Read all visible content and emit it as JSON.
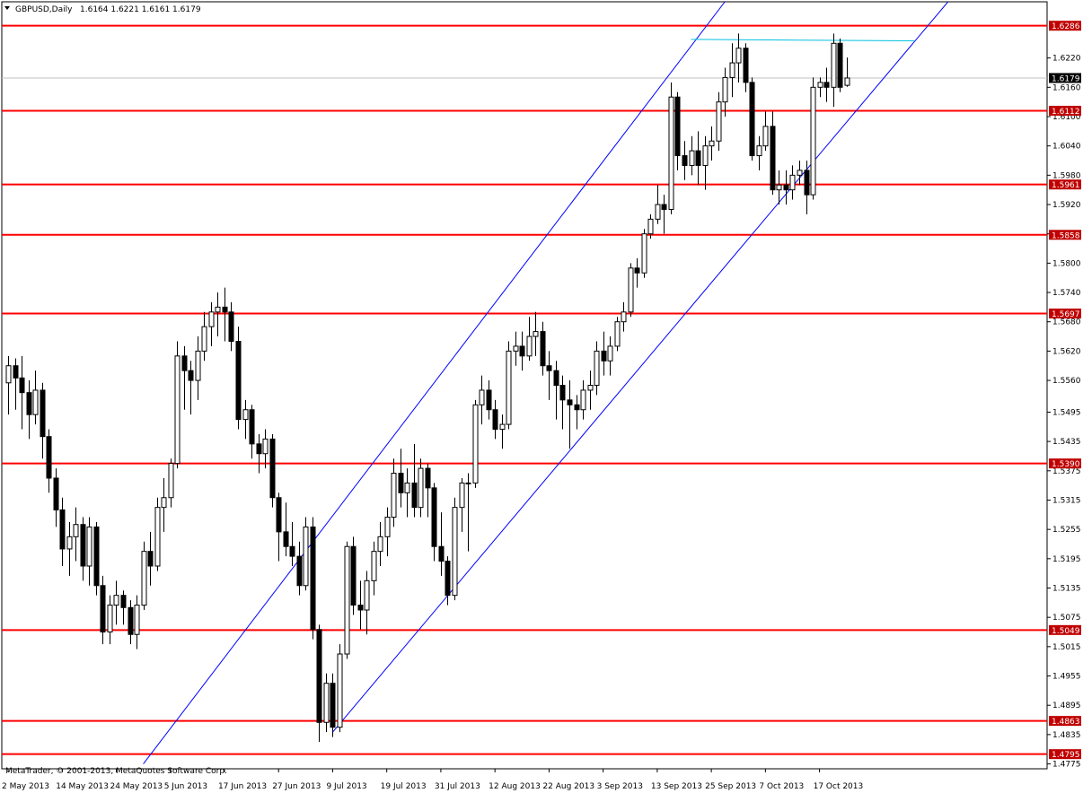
{
  "header": {
    "arrow_icon": "triangle-down-icon",
    "symbol": "GBPUSD,Daily",
    "ohlc": "1.6164 1.6221 1.6161 1.6179"
  },
  "footer": {
    "copyright": "MetaTrader, © 2001-2013, MetaQuotes Software Corp."
  },
  "colors": {
    "background": "#ffffff",
    "frame": "#000000",
    "level": "#ff0000",
    "channel": "#0000ff",
    "resistance": "#00c0e0",
    "bull_body": "#ffffff",
    "bear_body": "#000000",
    "current_tag": "#000000",
    "level_tag": "#c00000"
  },
  "chart_data": {
    "type": "candlestick",
    "symbol": "GBPUSD",
    "timeframe": "Daily",
    "last_price": "1.6179",
    "ylim": [
      1.4765,
      1.6335
    ],
    "y_ticks": [
      "1.6220",
      "1.6160",
      "1.6100",
      "1.6040",
      "1.5980",
      "1.5920",
      "1.5860",
      "1.5800",
      "1.5740",
      "1.5680",
      "1.5620",
      "1.5560",
      "1.5495",
      "1.5435",
      "1.5375",
      "1.5315",
      "1.5255",
      "1.5195",
      "1.5135",
      "1.5075",
      "1.5015",
      "1.4955",
      "1.4895",
      "1.4835",
      "1.4775"
    ],
    "horizontal_levels": [
      "1.6286",
      "1.6112",
      "1.5961",
      "1.5858",
      "1.5697",
      "1.5390",
      "1.5049",
      "1.4863",
      "1.4795"
    ],
    "x_labels": [
      {
        "label": "2 May 2013",
        "bar": 0
      },
      {
        "label": "14 May 2013",
        "bar": 8
      },
      {
        "label": "24 May 2013",
        "bar": 16
      },
      {
        "label": "5 Jun 2013",
        "bar": 24
      },
      {
        "label": "17 Jun 2013",
        "bar": 32
      },
      {
        "label": "27 Jun 2013",
        "bar": 40
      },
      {
        "label": "9 Jul 2013",
        "bar": 48
      },
      {
        "label": "19 Jul 2013",
        "bar": 56
      },
      {
        "label": "31 Jul 2013",
        "bar": 64
      },
      {
        "label": "12 Aug 2013",
        "bar": 72
      },
      {
        "label": "22 Aug 2013",
        "bar": 80
      },
      {
        "label": "3 Sep 2013",
        "bar": 88
      },
      {
        "label": "13 Sep 2013",
        "bar": 96
      },
      {
        "label": "25 Sep 2013",
        "bar": 104
      },
      {
        "label": "7 Oct 2013",
        "bar": 112
      },
      {
        "label": "17 Oct 2013",
        "bar": 120
      }
    ],
    "candles": [
      [
        1.5555,
        1.561,
        1.549,
        1.559
      ],
      [
        1.559,
        1.5605,
        1.55,
        1.5565
      ],
      [
        1.5565,
        1.561,
        1.546,
        1.5535
      ],
      [
        1.5535,
        1.556,
        1.544,
        1.549
      ],
      [
        1.549,
        1.558,
        1.547,
        1.554
      ],
      [
        1.554,
        1.5555,
        1.54,
        1.5445
      ],
      [
        1.5445,
        1.546,
        1.533,
        1.536
      ],
      [
        1.536,
        1.538,
        1.526,
        1.5295
      ],
      [
        1.5295,
        1.532,
        1.518,
        1.5215
      ],
      [
        1.5215,
        1.527,
        1.516,
        1.524
      ],
      [
        1.524,
        1.53,
        1.519,
        1.5265
      ],
      [
        1.5265,
        1.528,
        1.515,
        1.518
      ],
      [
        1.518,
        1.528,
        1.514,
        1.526
      ],
      [
        1.526,
        1.527,
        1.512,
        1.514
      ],
      [
        1.514,
        1.516,
        1.502,
        1.5045
      ],
      [
        1.5045,
        1.512,
        1.502,
        1.51
      ],
      [
        1.51,
        1.515,
        1.506,
        1.512
      ],
      [
        1.512,
        1.513,
        1.506,
        1.5095
      ],
      [
        1.5095,
        1.511,
        1.502,
        1.504
      ],
      [
        1.504,
        1.512,
        1.501,
        1.51
      ],
      [
        1.51,
        1.523,
        1.509,
        1.521
      ],
      [
        1.521,
        1.525,
        1.514,
        1.518
      ],
      [
        1.518,
        1.532,
        1.517,
        1.53
      ],
      [
        1.53,
        1.536,
        1.525,
        1.532
      ],
      [
        1.532,
        1.54,
        1.53,
        1.539
      ],
      [
        1.539,
        1.564,
        1.538,
        1.561
      ],
      [
        1.561,
        1.563,
        1.55,
        1.558
      ],
      [
        1.558,
        1.56,
        1.549,
        1.556
      ],
      [
        1.556,
        1.565,
        1.552,
        1.562
      ],
      [
        1.562,
        1.57,
        1.56,
        1.567
      ],
      [
        1.567,
        1.572,
        1.563,
        1.57
      ],
      [
        1.57,
        1.574,
        1.565,
        1.571
      ],
      [
        1.571,
        1.575,
        1.564,
        1.57
      ],
      [
        1.57,
        1.572,
        1.562,
        1.564
      ],
      [
        1.564,
        1.567,
        1.546,
        1.548
      ],
      [
        1.548,
        1.552,
        1.544,
        1.55
      ],
      [
        1.55,
        1.551,
        1.54,
        1.543
      ],
      [
        1.543,
        1.545,
        1.537,
        1.541
      ],
      [
        1.541,
        1.546,
        1.538,
        1.544
      ],
      [
        1.544,
        1.545,
        1.53,
        1.532
      ],
      [
        1.532,
        1.533,
        1.519,
        1.525
      ],
      [
        1.525,
        1.531,
        1.52,
        1.522
      ],
      [
        1.522,
        1.527,
        1.518,
        1.52
      ],
      [
        1.52,
        1.523,
        1.512,
        1.514
      ],
      [
        1.514,
        1.528,
        1.513,
        1.526
      ],
      [
        1.526,
        1.528,
        1.503,
        1.505
      ],
      [
        1.505,
        1.506,
        1.482,
        1.486
      ],
      [
        1.486,
        1.496,
        1.484,
        1.494
      ],
      [
        1.494,
        1.496,
        1.483,
        1.485
      ],
      [
        1.485,
        1.502,
        1.484,
        1.5
      ],
      [
        1.5,
        1.523,
        1.499,
        1.522
      ],
      [
        1.522,
        1.524,
        1.508,
        1.51
      ],
      [
        1.51,
        1.515,
        1.505,
        1.509
      ],
      [
        1.509,
        1.517,
        1.504,
        1.515
      ],
      [
        1.515,
        1.523,
        1.512,
        1.521
      ],
      [
        1.521,
        1.527,
        1.518,
        1.524
      ],
      [
        1.524,
        1.53,
        1.52,
        1.528
      ],
      [
        1.528,
        1.54,
        1.526,
        1.537
      ],
      [
        1.537,
        1.542,
        1.53,
        1.533
      ],
      [
        1.533,
        1.538,
        1.528,
        1.535
      ],
      [
        1.535,
        1.543,
        1.528,
        1.53
      ],
      [
        1.53,
        1.54,
        1.528,
        1.538
      ],
      [
        1.538,
        1.539,
        1.528,
        1.534
      ],
      [
        1.534,
        1.535,
        1.519,
        1.522
      ],
      [
        1.522,
        1.529,
        1.516,
        1.519
      ],
      [
        1.519,
        1.52,
        1.51,
        1.512
      ],
      [
        1.512,
        1.532,
        1.511,
        1.53
      ],
      [
        1.53,
        1.536,
        1.525,
        1.535
      ],
      [
        1.535,
        1.537,
        1.521,
        1.535
      ],
      [
        1.535,
        1.552,
        1.534,
        1.551
      ],
      [
        1.551,
        1.557,
        1.547,
        1.554
      ],
      [
        1.554,
        1.556,
        1.548,
        1.55
      ],
      [
        1.55,
        1.552,
        1.544,
        1.546
      ],
      [
        1.546,
        1.549,
        1.542,
        1.547
      ],
      [
        1.547,
        1.564,
        1.546,
        1.562
      ],
      [
        1.562,
        1.566,
        1.559,
        1.563
      ],
      [
        1.563,
        1.566,
        1.558,
        1.561
      ],
      [
        1.561,
        1.569,
        1.56,
        1.565
      ],
      [
        1.565,
        1.57,
        1.561,
        1.566
      ],
      [
        1.566,
        1.568,
        1.557,
        1.559
      ],
      [
        1.559,
        1.562,
        1.552,
        1.558
      ],
      [
        1.558,
        1.56,
        1.548,
        1.555
      ],
      [
        1.555,
        1.557,
        1.546,
        1.552
      ],
      [
        1.552,
        1.556,
        1.542,
        1.551
      ],
      [
        1.551,
        1.553,
        1.546,
        1.55
      ],
      [
        1.55,
        1.556,
        1.548,
        1.554
      ],
      [
        1.554,
        1.558,
        1.55,
        1.555
      ],
      [
        1.555,
        1.564,
        1.553,
        1.562
      ],
      [
        1.562,
        1.566,
        1.557,
        1.56
      ],
      [
        1.56,
        1.565,
        1.557,
        1.563
      ],
      [
        1.563,
        1.569,
        1.562,
        1.568
      ],
      [
        1.568,
        1.572,
        1.566,
        1.57
      ],
      [
        1.57,
        1.58,
        1.569,
        1.579
      ],
      [
        1.579,
        1.581,
        1.575,
        1.578
      ],
      [
        1.578,
        1.587,
        1.577,
        1.586
      ],
      [
        1.586,
        1.59,
        1.585,
        1.589
      ],
      [
        1.589,
        1.596,
        1.588,
        1.592
      ],
      [
        1.592,
        1.594,
        1.586,
        1.591
      ],
      [
        1.591,
        1.617,
        1.59,
        1.614
      ],
      [
        1.614,
        1.615,
        1.599,
        1.602
      ],
      [
        1.602,
        1.605,
        1.597,
        1.6
      ],
      [
        1.6,
        1.606,
        1.598,
        1.603
      ],
      [
        1.603,
        1.607,
        1.596,
        1.6
      ],
      [
        1.6,
        1.606,
        1.595,
        1.604
      ],
      [
        1.604,
        1.608,
        1.601,
        1.605
      ],
      [
        1.605,
        1.615,
        1.603,
        1.613
      ],
      [
        1.613,
        1.62,
        1.61,
        1.618
      ],
      [
        1.618,
        1.625,
        1.614,
        1.621
      ],
      [
        1.621,
        1.627,
        1.617,
        1.624
      ],
      [
        1.624,
        1.625,
        1.615,
        1.617
      ],
      [
        1.617,
        1.618,
        1.601,
        1.602
      ],
      [
        1.602,
        1.606,
        1.599,
        1.604
      ],
      [
        1.604,
        1.611,
        1.603,
        1.608
      ],
      [
        1.608,
        1.611,
        1.594,
        1.595
      ],
      [
        1.595,
        1.599,
        1.592,
        1.596
      ],
      [
        1.596,
        1.599,
        1.592,
        1.595
      ],
      [
        1.595,
        1.6,
        1.593,
        1.598
      ],
      [
        1.598,
        1.601,
        1.596,
        1.599
      ],
      [
        1.599,
        1.601,
        1.59,
        1.594
      ],
      [
        1.594,
        1.618,
        1.593,
        1.616
      ],
      [
        1.616,
        1.618,
        1.614,
        1.617
      ],
      [
        1.617,
        1.62,
        1.613,
        1.616
      ],
      [
        1.616,
        1.627,
        1.612,
        1.625
      ],
      [
        1.625,
        1.626,
        1.615,
        1.616
      ],
      [
        1.6164,
        1.6221,
        1.6161,
        1.6179
      ]
    ],
    "trendlines": [
      {
        "name": "channel-upper",
        "color": "#0000ff",
        "p1": [
          20,
          1.4775
        ],
        "p2": [
          106,
          1.6335
        ]
      },
      {
        "name": "channel-lower",
        "color": "#0000ff",
        "p1": [
          48,
          1.484
        ],
        "p2": [
          139,
          1.6335
        ]
      },
      {
        "name": "resistance",
        "color": "#00c0e0",
        "p1": [
          101,
          1.6258
        ],
        "p2": [
          134,
          1.6255
        ]
      }
    ],
    "grid": false
  }
}
